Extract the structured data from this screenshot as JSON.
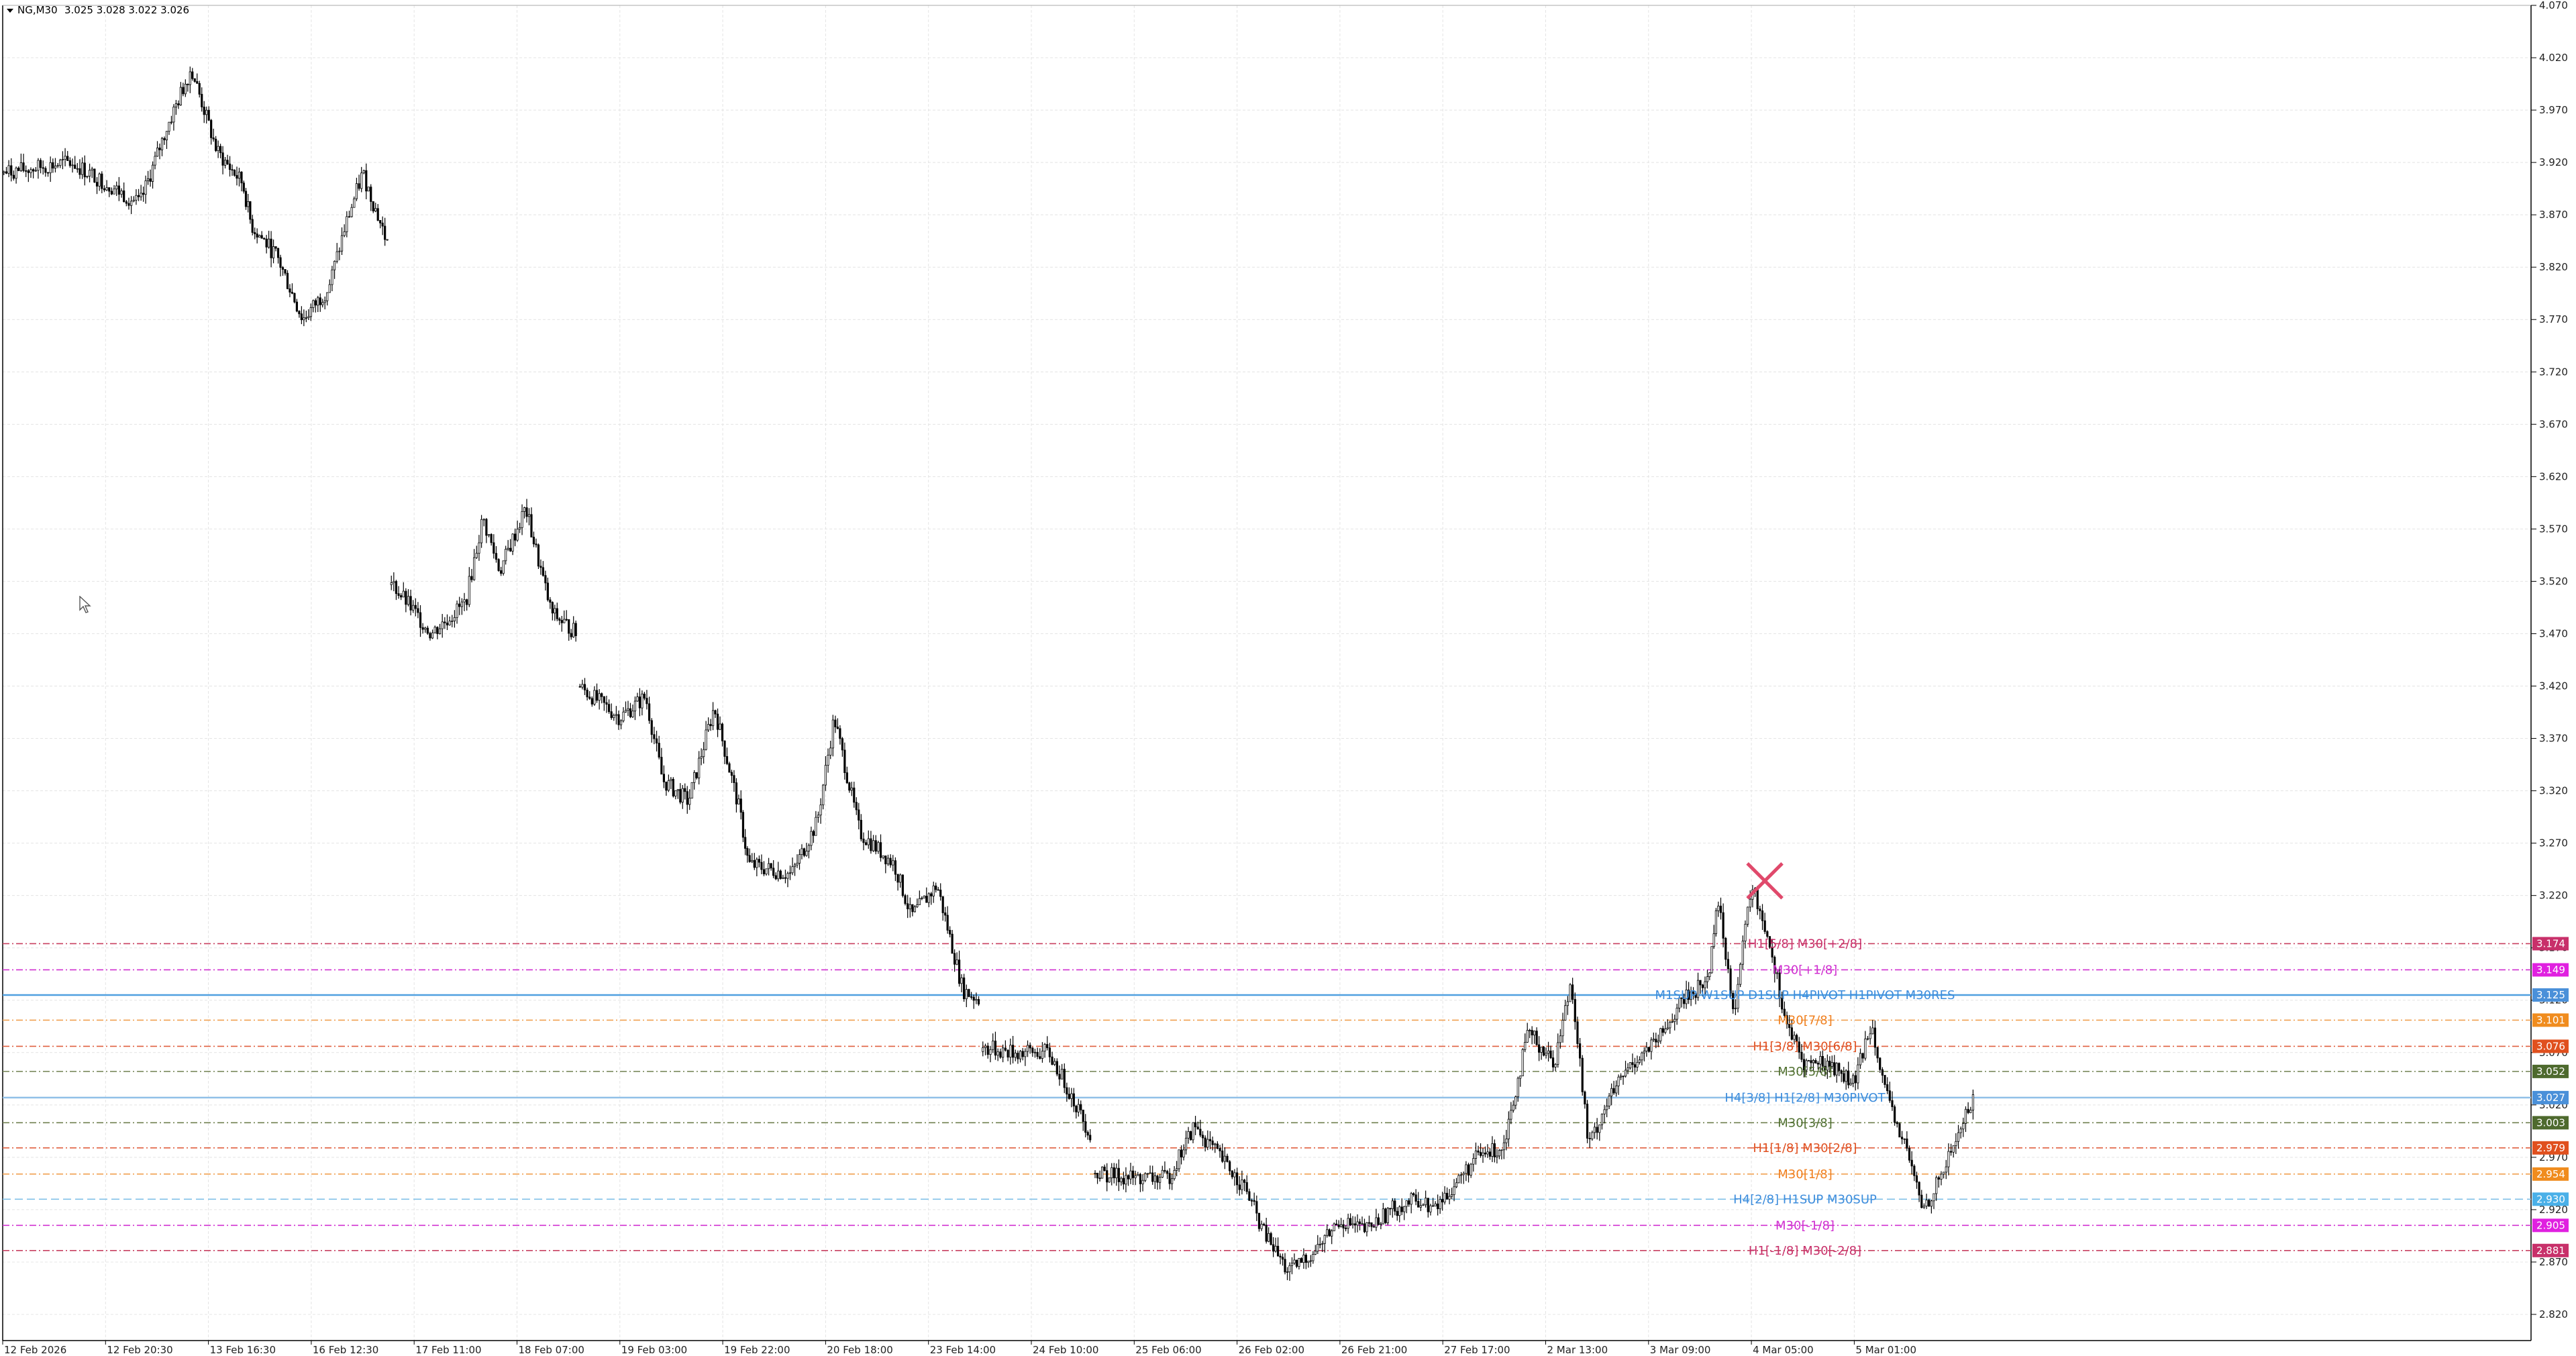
{
  "header": {
    "symbol": "NG,M30",
    "quote": "3.025 3.028 3.022 3.026"
  },
  "colors": {
    "grid": "#e4e4e4",
    "candle": "#000000",
    "axis": "#000000",
    "marker": "#e0496b"
  },
  "chart_data": {
    "type": "candlestick",
    "title": "",
    "ylim": [
      2.795,
      4.07
    ],
    "y_ticks": [
      "2.820",
      "2.870",
      "2.920",
      "2.970",
      "3.020",
      "3.070",
      "3.120",
      "3.170",
      "3.220",
      "3.270",
      "3.320",
      "3.370",
      "3.420",
      "3.470",
      "3.520",
      "3.570",
      "3.620",
      "3.670",
      "3.720",
      "3.770",
      "3.820",
      "3.870",
      "3.920",
      "3.970",
      "4.020",
      "4.070"
    ],
    "x_labels": [
      "12 Feb 2026",
      "12 Feb 20:30",
      "13 Feb 16:30",
      "16 Feb 12:30",
      "17 Feb 11:00",
      "18 Feb 07:00",
      "19 Feb 03:00",
      "19 Feb 22:00",
      "20 Feb 18:00",
      "23 Feb 14:00",
      "24 Feb 10:00",
      "25 Feb 06:00",
      "26 Feb 02:00",
      "26 Feb 21:00",
      "27 Feb 17:00",
      "2 Mar 13:00",
      "3 Mar 09:00",
      "4 Mar 05:00",
      "5 Mar 01:00"
    ],
    "price_path": [
      [
        0,
        3.91
      ],
      [
        8,
        3.92
      ],
      [
        12,
        3.9
      ],
      [
        16,
        3.88
      ],
      [
        19,
        3.95
      ],
      [
        22,
        4.01
      ],
      [
        25,
        3.93
      ],
      [
        28,
        3.9
      ],
      [
        29,
        3.86
      ],
      [
        32,
        3.83
      ],
      [
        35,
        3.77
      ],
      [
        38,
        3.8
      ],
      [
        40,
        3.86
      ],
      [
        42,
        3.91
      ],
      [
        45,
        3.84
      ],
      [
        45.2,
        3.52
      ],
      [
        50,
        3.47
      ],
      [
        54,
        3.5
      ],
      [
        56,
        3.58
      ],
      [
        58,
        3.53
      ],
      [
        61,
        3.59
      ],
      [
        64,
        3.49
      ],
      [
        67,
        3.47
      ],
      [
        67.2,
        3.42
      ],
      [
        72,
        3.39
      ],
      [
        75,
        3.41
      ],
      [
        77,
        3.33
      ],
      [
        80,
        3.31
      ],
      [
        83,
        3.4
      ],
      [
        86,
        3.3
      ],
      [
        87,
        3.25
      ],
      [
        92,
        3.24
      ],
      [
        95,
        3.29
      ],
      [
        97,
        3.39
      ],
      [
        100,
        3.28
      ],
      [
        104,
        3.25
      ],
      [
        106,
        3.2
      ],
      [
        109,
        3.23
      ],
      [
        112,
        3.13
      ],
      [
        114,
        3.12
      ],
      [
        114.2,
        3.075
      ],
      [
        118,
        3.07
      ],
      [
        122,
        3.07
      ],
      [
        124,
        3.04
      ],
      [
        127,
        2.99
      ],
      [
        127.3,
        2.955
      ],
      [
        132,
        2.95
      ],
      [
        136,
        2.95
      ],
      [
        139,
        3.0
      ],
      [
        141,
        2.98
      ],
      [
        145,
        2.94
      ],
      [
        147,
        2.9
      ],
      [
        150,
        2.86
      ],
      [
        153,
        2.88
      ],
      [
        156,
        2.91
      ],
      [
        159,
        2.9
      ],
      [
        162,
        2.92
      ],
      [
        165,
        2.93
      ],
      [
        167,
        2.92
      ],
      [
        170,
        2.95
      ],
      [
        172,
        2.97
      ],
      [
        175,
        2.98
      ],
      [
        178,
        3.09
      ],
      [
        181,
        3.06
      ],
      [
        183,
        3.14
      ],
      [
        185,
        2.98
      ],
      [
        187,
        3.02
      ],
      [
        190,
        3.06
      ],
      [
        193,
        3.08
      ],
      [
        196,
        3.12
      ],
      [
        199,
        3.14
      ],
      [
        200,
        3.22
      ],
      [
        202,
        3.11
      ],
      [
        204,
        3.23
      ],
      [
        206,
        3.18
      ],
      [
        208,
        3.1
      ],
      [
        210,
        3.06
      ],
      [
        213,
        3.06
      ],
      [
        216,
        3.04
      ],
      [
        218,
        3.1
      ],
      [
        220,
        3.02
      ],
      [
        222,
        2.98
      ],
      [
        224,
        2.92
      ],
      [
        226,
        2.95
      ],
      [
        228,
        2.99
      ],
      [
        230,
        3.03
      ]
    ],
    "marker": {
      "type": "x",
      "price": 3.234,
      "position": "near session high"
    },
    "levels": [
      {
        "price": 3.174,
        "style": "dashdot",
        "color": "#c84060",
        "label": "H1[5/8] M30[+2/8]",
        "label_color": "#c8306a",
        "tag": "3.174",
        "tag_color": "#c8306a"
      },
      {
        "price": 3.149,
        "style": "dashdot",
        "color": "#d030d0",
        "label": "M30[+1/8]",
        "label_color": "#d030d0",
        "tag": "3.149",
        "tag_color": "#e020e0"
      },
      {
        "price": 3.125,
        "style": "solid",
        "color": "#50a0e0",
        "label": "M1SUP W1SUP D1SUP H4PIVOT H1PIVOT M30RES",
        "label_color": "#3c8cdc",
        "tag": "3.125",
        "tag_color": "#4a90d9"
      },
      {
        "price": 3.101,
        "style": "dashdot",
        "color": "#f0a050",
        "label": "M30[7/8]",
        "label_color": "#f08020",
        "tag": "3.101",
        "tag_color": "#f08c1e"
      },
      {
        "price": 3.076,
        "style": "dashdot",
        "color": "#e06040",
        "label": "H1[3/8] M30[6/8]",
        "label_color": "#e05020",
        "tag": "3.076",
        "tag_color": "#e0501e"
      },
      {
        "price": 3.052,
        "style": "dashdot",
        "color": "#708050",
        "label": "M30[5/8]",
        "label_color": "#507030",
        "tag": "3.052",
        "tag_color": "#4e6a2e"
      },
      {
        "price": 3.027,
        "style": "solid",
        "color": "#90c0e8",
        "label": "H4[3/8] H1[2/8] M30PIVOT",
        "label_color": "#3c8cdc",
        "tag": "3.027",
        "tag_color": "#4a90d9"
      },
      {
        "price": 3.003,
        "style": "dashdot",
        "color": "#708050",
        "label": "M30[3/8]",
        "label_color": "#507030",
        "tag": "3.003",
        "tag_color": "#4e6a2e"
      },
      {
        "price": 2.979,
        "style": "dashdot",
        "color": "#e06040",
        "label": "H1[1/8] M30[2/8]",
        "label_color": "#e05020",
        "tag": "2.979",
        "tag_color": "#e0501e"
      },
      {
        "price": 2.954,
        "style": "dashdot",
        "color": "#f0a050",
        "label": "M30[1/8]",
        "label_color": "#f08020",
        "tag": "2.954",
        "tag_color": "#f08c1e"
      },
      {
        "price": 2.93,
        "style": "dashed",
        "color": "#80c0e8",
        "label": "H4[2/8] H1SUP M30SUP",
        "label_color": "#3c8cdc",
        "tag": "2.930",
        "tag_color": "#4ab0e8"
      },
      {
        "price": 2.905,
        "style": "dashdot",
        "color": "#d030d0",
        "label": "M30[-1/8]",
        "label_color": "#d030d0",
        "tag": "2.905",
        "tag_color": "#e020e0"
      },
      {
        "price": 2.881,
        "style": "dashdot",
        "color": "#c84060",
        "label": "H1[-1/8] M30[-2/8]",
        "label_color": "#c8306a",
        "tag": "2.881",
        "tag_color": "#c8306a"
      }
    ]
  }
}
